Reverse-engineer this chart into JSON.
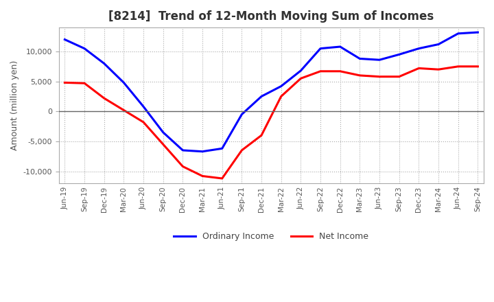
{
  "title": "[8214]  Trend of 12-Month Moving Sum of Incomes",
  "ylabel": "Amount (million yen)",
  "ylim": [
    -12000,
    14000
  ],
  "yticks": [
    -10000,
    -5000,
    0,
    5000,
    10000
  ],
  "legend_labels": [
    "Ordinary Income",
    "Net Income"
  ],
  "line_colors": [
    "blue",
    "red"
  ],
  "x_labels": [
    "Jun-19",
    "Sep-19",
    "Dec-19",
    "Mar-20",
    "Jun-20",
    "Sep-20",
    "Dec-20",
    "Mar-21",
    "Jun-21",
    "Sep-21",
    "Dec-21",
    "Mar-22",
    "Jun-22",
    "Sep-22",
    "Dec-22",
    "Mar-23",
    "Jun-23",
    "Sep-23",
    "Dec-23",
    "Mar-24",
    "Jun-24",
    "Sep-24"
  ],
  "ordinary_income": [
    12000,
    10500,
    8000,
    4800,
    800,
    -3500,
    -6500,
    -6700,
    -6200,
    -500,
    2500,
    4200,
    6800,
    10500,
    10800,
    8800,
    8600,
    9500,
    10500,
    11200,
    13000,
    13200
  ],
  "net_income": [
    4800,
    4700,
    2200,
    200,
    -1800,
    -5500,
    -9200,
    -10800,
    -11200,
    -6500,
    -4000,
    2500,
    5500,
    6700,
    6700,
    6000,
    5800,
    5800,
    7200,
    7000,
    7500,
    7500
  ]
}
